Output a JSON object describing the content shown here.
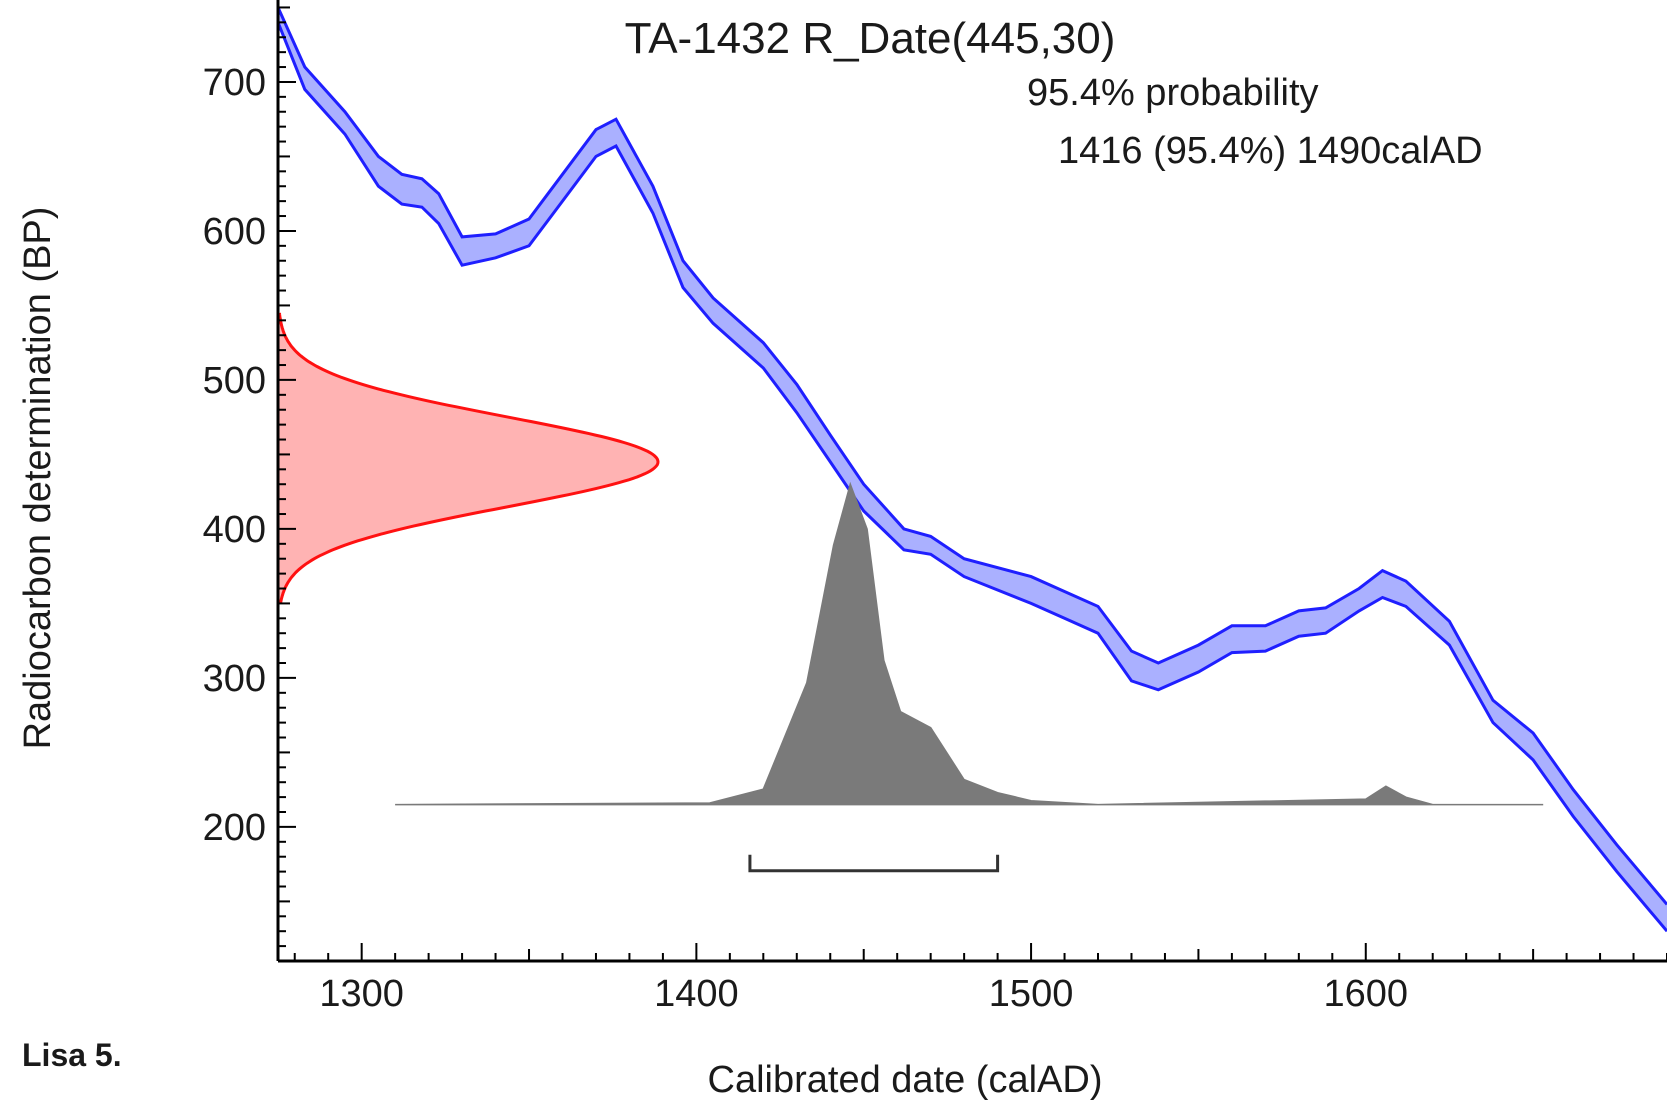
{
  "figure_label": "Lisa 5.",
  "chart_data": {
    "type": "area",
    "title": "TA-1432 R_Date(445,30)",
    "probability_label": "95.4% probability",
    "range_label": "1416 (95.4%) 1490calAD",
    "xlabel": "Calibrated date (calAD)",
    "ylabel": "Radiocarbon determination (BP)",
    "xlim": [
      1275,
      1690
    ],
    "ylim": [
      110,
      755
    ],
    "x_ticks": [
      1300,
      1400,
      1500,
      1600
    ],
    "y_ticks": [
      200,
      300,
      400,
      500,
      600,
      700
    ],
    "colors": {
      "curve_line": "#1f1fff",
      "curve_fill": "#aab0ff",
      "measurement_line": "#ff1111",
      "measurement_fill": "#ffb3b3",
      "posterior_fill": "#7a7a7a",
      "axis": "#000000"
    },
    "calibration_curve": {
      "x": [
        1275,
        1283,
        1295,
        1305,
        1312,
        1318,
        1323,
        1330,
        1340,
        1350,
        1360,
        1370,
        1376,
        1387,
        1396,
        1405,
        1420,
        1430,
        1440,
        1450,
        1462,
        1470,
        1480,
        1500,
        1510,
        1520,
        1530,
        1538,
        1550,
        1560,
        1570,
        1580,
        1588,
        1598,
        1605,
        1612,
        1625,
        1638,
        1650,
        1662,
        1675,
        1690
      ],
      "upper": [
        750,
        710,
        680,
        650,
        638,
        635,
        625,
        596,
        598,
        608,
        638,
        668,
        675,
        630,
        580,
        555,
        525,
        497,
        463,
        430,
        400,
        395,
        380,
        368,
        358,
        348,
        318,
        310,
        322,
        335,
        335,
        345,
        347,
        360,
        372,
        365,
        338,
        285,
        263,
        225,
        188,
        148
      ],
      "lower": [
        740,
        695,
        665,
        630,
        618,
        616,
        605,
        577,
        582,
        590,
        620,
        650,
        657,
        612,
        562,
        538,
        508,
        478,
        445,
        412,
        386,
        383,
        368,
        350,
        340,
        330,
        298,
        292,
        304,
        317,
        318,
        328,
        330,
        345,
        354,
        348,
        322,
        270,
        245,
        207,
        170,
        130
      ]
    },
    "measurement_distribution": {
      "name": "R_Date(445,30)",
      "mean_bp": 445,
      "sd_bp": 30,
      "bp_range": [
        350,
        545
      ]
    },
    "posterior_distribution": {
      "baseline_bp": 215,
      "x": [
        1310,
        1404,
        1420,
        1433,
        1441,
        1446,
        1451,
        1456,
        1461,
        1470,
        1480,
        1490,
        1500,
        1520,
        1600,
        1606,
        1612,
        1620,
        1653
      ],
      "density": [
        0.0,
        0.005,
        0.048,
        0.38,
        0.81,
        1.0,
        0.86,
        0.45,
        0.29,
        0.24,
        0.078,
        0.037,
        0.012,
        0.0,
        0.017,
        0.057,
        0.023,
        0.0,
        0.0
      ]
    },
    "range_bar": {
      "from": 1416,
      "to": 1490,
      "bp": 180,
      "probability": "95.4%"
    }
  }
}
